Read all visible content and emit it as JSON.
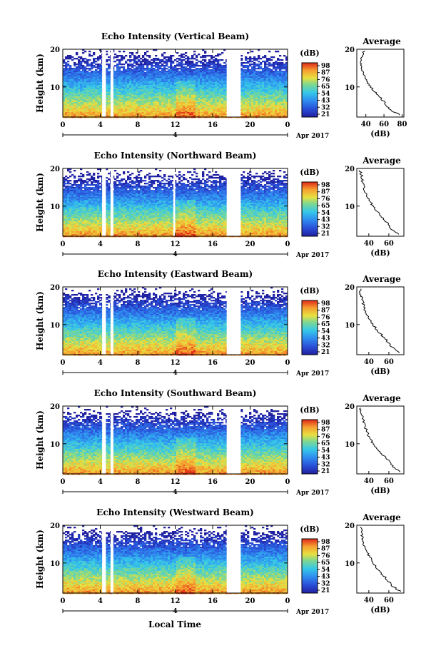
{
  "figure": {
    "xaxis_label": "Local Time",
    "date_label": "4",
    "month_label": "Apr 2017"
  },
  "chart_data": [
    {
      "type": "heatmap",
      "title": "Echo Intensity (Vertical Beam)",
      "ylabel": "Height (km)",
      "xlabel": "Local Time",
      "x_ticks": [
        "0",
        "4",
        "8",
        "12",
        "16",
        "20",
        "0"
      ],
      "y_ticks": [
        "10",
        "20"
      ],
      "xlim": [
        0,
        24
      ],
      "ylim": [
        2,
        20
      ],
      "colorbar": {
        "label": "(dB)",
        "ticks": [
          "21",
          "32",
          "43",
          "54",
          "65",
          "76",
          "87",
          "98"
        ],
        "range": [
          21,
          98
        ]
      },
      "gaps": [
        [
          4.2,
          4.6
        ],
        [
          5.1,
          5.4
        ],
        [
          17.5,
          19.0
        ]
      ],
      "profile": {
        "title": "Average",
        "xlabel": "(dB)",
        "x_ticks": [
          "40",
          "60",
          "80"
        ],
        "xlim": [
          30,
          82
        ],
        "heights": [
          2.5,
          4,
          6,
          8,
          10,
          12,
          14,
          16,
          18,
          19.5
        ],
        "values": [
          78,
          66,
          60,
          53,
          45,
          40,
          37,
          34,
          36,
          38
        ]
      }
    },
    {
      "type": "heatmap",
      "title": "Echo Intensity (Northward Beam)",
      "ylabel": "Height (km)",
      "xlabel": "Local Time",
      "x_ticks": [
        "0",
        "4",
        "8",
        "12",
        "16",
        "20",
        "0"
      ],
      "y_ticks": [
        "10",
        "20"
      ],
      "xlim": [
        0,
        24
      ],
      "ylim": [
        2,
        20
      ],
      "colorbar": {
        "label": "(dB)",
        "ticks": [
          "21",
          "32",
          "43",
          "54",
          "65",
          "76",
          "87",
          "98"
        ],
        "range": [
          21,
          98
        ]
      },
      "gaps": [
        [
          4.2,
          4.6
        ],
        [
          5.1,
          5.4
        ],
        [
          11.8,
          12.0
        ],
        [
          17.5,
          19.0
        ]
      ],
      "profile": {
        "title": "Average",
        "xlabel": "(dB)",
        "x_ticks": [
          "40",
          "60"
        ],
        "xlim": [
          28,
          75
        ],
        "heights": [
          2.5,
          4,
          6,
          8,
          10,
          12,
          14,
          16,
          18,
          19.5
        ],
        "values": [
          70,
          62,
          57,
          50,
          44,
          40,
          36,
          34,
          33,
          31
        ]
      }
    },
    {
      "type": "heatmap",
      "title": "Echo Intensity (Eastward Beam)",
      "ylabel": "Height (km)",
      "xlabel": "Local Time",
      "x_ticks": [
        "0",
        "4",
        "8",
        "12",
        "16",
        "20",
        "0"
      ],
      "y_ticks": [
        "10",
        "20"
      ],
      "xlim": [
        0,
        24
      ],
      "ylim": [
        2,
        20
      ],
      "colorbar": {
        "label": "(dB)",
        "ticks": [
          "21",
          "32",
          "43",
          "54",
          "65",
          "76",
          "87",
          "98"
        ],
        "range": [
          21,
          98
        ]
      },
      "gaps": [
        [
          4.2,
          4.6
        ],
        [
          5.1,
          5.4
        ],
        [
          17.5,
          19.0
        ]
      ],
      "profile": {
        "title": "Average",
        "xlabel": "(dB)",
        "x_ticks": [
          "40",
          "60"
        ],
        "xlim": [
          28,
          75
        ],
        "heights": [
          2.5,
          4,
          6,
          8,
          10,
          12,
          14,
          16,
          18,
          19.5
        ],
        "values": [
          71,
          63,
          57,
          50,
          44,
          40,
          36,
          34,
          32,
          31
        ]
      }
    },
    {
      "type": "heatmap",
      "title": "Echo Intensity (Southward Beam)",
      "ylabel": "Height (km)",
      "xlabel": "Local Time",
      "x_ticks": [
        "0",
        "4",
        "8",
        "12",
        "16",
        "20",
        "0"
      ],
      "y_ticks": [
        "10",
        "20"
      ],
      "xlim": [
        0,
        24
      ],
      "ylim": [
        2,
        20
      ],
      "colorbar": {
        "label": "(dB)",
        "ticks": [
          "21",
          "32",
          "43",
          "54",
          "65",
          "76",
          "87",
          "98"
        ],
        "range": [
          21,
          98
        ]
      },
      "gaps": [
        [
          4.2,
          4.6
        ],
        [
          5.1,
          5.4
        ],
        [
          17.5,
          19.0
        ]
      ],
      "profile": {
        "title": "Average",
        "xlabel": "(dB)",
        "x_ticks": [
          "40",
          "60"
        ],
        "xlim": [
          28,
          75
        ],
        "heights": [
          2.5,
          4,
          6,
          8,
          10,
          12,
          14,
          16,
          18,
          19.5
        ],
        "values": [
          72,
          64,
          58,
          50,
          44,
          40,
          37,
          35,
          33,
          31
        ]
      }
    },
    {
      "type": "heatmap",
      "title": "Echo Intensity (Westward Beam)",
      "ylabel": "Height (km)",
      "xlabel": "Local Time",
      "x_ticks": [
        "0",
        "4",
        "8",
        "12",
        "16",
        "20",
        "0"
      ],
      "y_ticks": [
        "10",
        "20"
      ],
      "xlim": [
        0,
        24
      ],
      "ylim": [
        2,
        20
      ],
      "colorbar": {
        "label": "(dB)",
        "ticks": [
          "21",
          "32",
          "43",
          "54",
          "65",
          "76",
          "87",
          "98"
        ],
        "range": [
          21,
          98
        ]
      },
      "gaps": [
        [
          4.2,
          4.6
        ],
        [
          5.1,
          5.4
        ],
        [
          17.5,
          19.0
        ]
      ],
      "profile": {
        "title": "Average",
        "xlabel": "(dB)",
        "x_ticks": [
          "40",
          "60"
        ],
        "xlim": [
          28,
          75
        ],
        "heights": [
          2.5,
          4,
          6,
          8,
          10,
          12,
          14,
          16,
          18,
          19.5
        ],
        "values": [
          71,
          63,
          57,
          50,
          44,
          40,
          36,
          34,
          33,
          32
        ]
      }
    }
  ]
}
